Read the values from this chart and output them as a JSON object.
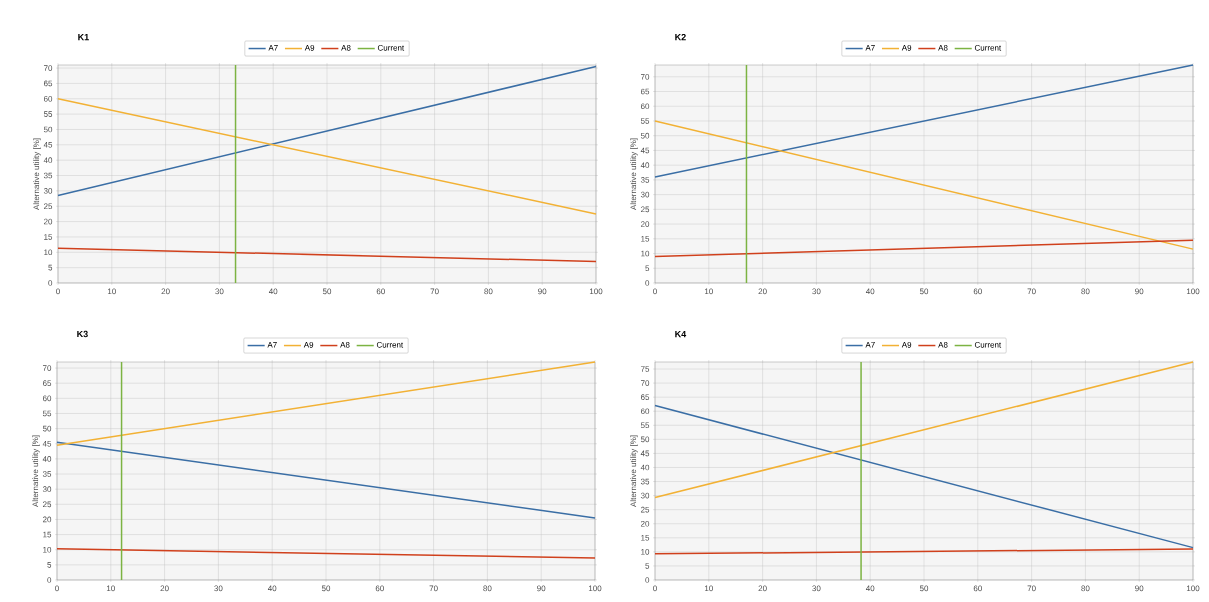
{
  "chart_data": [
    {
      "type": "line",
      "title": "K1",
      "ylabel": "Alternative utility [%]",
      "xlim": [
        0,
        100
      ],
      "ylim": [
        0,
        71
      ],
      "xticks": [
        0,
        10,
        20,
        30,
        40,
        50,
        60,
        70,
        80,
        90,
        100
      ],
      "yticks": [
        0,
        5,
        10,
        15,
        20,
        25,
        30,
        35,
        40,
        45,
        50,
        55,
        60,
        65,
        70
      ],
      "grid": true,
      "legend": "top",
      "series": [
        {
          "name": "A7",
          "color": "#3a6ea5",
          "x": [
            0,
            100
          ],
          "values": [
            28.5,
            70.5
          ]
        },
        {
          "name": "A9",
          "color": "#f2b134",
          "x": [
            0,
            100
          ],
          "values": [
            60,
            22.5
          ]
        },
        {
          "name": "A8",
          "color": "#d0401c",
          "x": [
            0,
            100
          ],
          "values": [
            11.3,
            7
          ]
        },
        {
          "name": "Current",
          "color": "#7cb342",
          "x": [
            33,
            33
          ],
          "values": [
            0,
            71
          ]
        }
      ]
    },
    {
      "type": "line",
      "title": "K2",
      "ylabel": "Alternative utility [%]",
      "xlim": [
        0,
        100
      ],
      "ylim": [
        0,
        74
      ],
      "xticks": [
        0,
        10,
        20,
        30,
        40,
        50,
        60,
        70,
        80,
        90,
        100
      ],
      "yticks": [
        0,
        5,
        10,
        15,
        20,
        25,
        30,
        35,
        40,
        45,
        50,
        55,
        60,
        65,
        70
      ],
      "grid": true,
      "legend": "top",
      "series": [
        {
          "name": "A7",
          "color": "#3a6ea5",
          "x": [
            0,
            100
          ],
          "values": [
            36,
            74
          ]
        },
        {
          "name": "A9",
          "color": "#f2b134",
          "x": [
            0,
            100
          ],
          "values": [
            55,
            11.5
          ]
        },
        {
          "name": "A8",
          "color": "#d0401c",
          "x": [
            0,
            100
          ],
          "values": [
            9,
            14.5
          ]
        },
        {
          "name": "Current",
          "color": "#7cb342",
          "x": [
            17,
            17
          ],
          "values": [
            0,
            74
          ]
        }
      ]
    },
    {
      "type": "line",
      "title": "K3",
      "ylabel": "Alternative utility [%]",
      "xlim": [
        0,
        100
      ],
      "ylim": [
        0,
        72
      ],
      "xticks": [
        0,
        10,
        20,
        30,
        40,
        50,
        60,
        70,
        80,
        90,
        100
      ],
      "yticks": [
        0,
        5,
        10,
        15,
        20,
        25,
        30,
        35,
        40,
        45,
        50,
        55,
        60,
        65,
        70
      ],
      "grid": true,
      "legend": "top",
      "series": [
        {
          "name": "A7",
          "color": "#3a6ea5",
          "x": [
            0,
            100
          ],
          "values": [
            45.5,
            20.5
          ]
        },
        {
          "name": "A9",
          "color": "#f2b134",
          "x": [
            0,
            100
          ],
          "values": [
            44.5,
            72
          ]
        },
        {
          "name": "A8",
          "color": "#d0401c",
          "x": [
            0,
            100
          ],
          "values": [
            10.3,
            7.3
          ]
        },
        {
          "name": "Current",
          "color": "#7cb342",
          "x": [
            12,
            12
          ],
          "values": [
            0,
            72
          ]
        }
      ]
    },
    {
      "type": "line",
      "title": "K4",
      "ylabel": "Alternative utility [%]",
      "xlim": [
        0,
        100
      ],
      "ylim": [
        0,
        77.5
      ],
      "xticks": [
        0,
        10,
        20,
        30,
        40,
        50,
        60,
        70,
        80,
        90,
        100
      ],
      "yticks": [
        0,
        5,
        10,
        15,
        20,
        25,
        30,
        35,
        40,
        45,
        50,
        55,
        60,
        65,
        70,
        75
      ],
      "grid": true,
      "legend": "top",
      "series": [
        {
          "name": "A7",
          "color": "#3a6ea5",
          "x": [
            0,
            100
          ],
          "values": [
            62,
            11.5
          ]
        },
        {
          "name": "A9",
          "color": "#f2b134",
          "x": [
            0,
            100
          ],
          "values": [
            29.3,
            77.5
          ]
        },
        {
          "name": "A8",
          "color": "#d0401c",
          "x": [
            0,
            100
          ],
          "values": [
            9.3,
            11
          ]
        },
        {
          "name": "Current",
          "color": "#7cb342",
          "x": [
            38.3,
            38.3
          ],
          "values": [
            0,
            77.5
          ]
        }
      ]
    }
  ]
}
